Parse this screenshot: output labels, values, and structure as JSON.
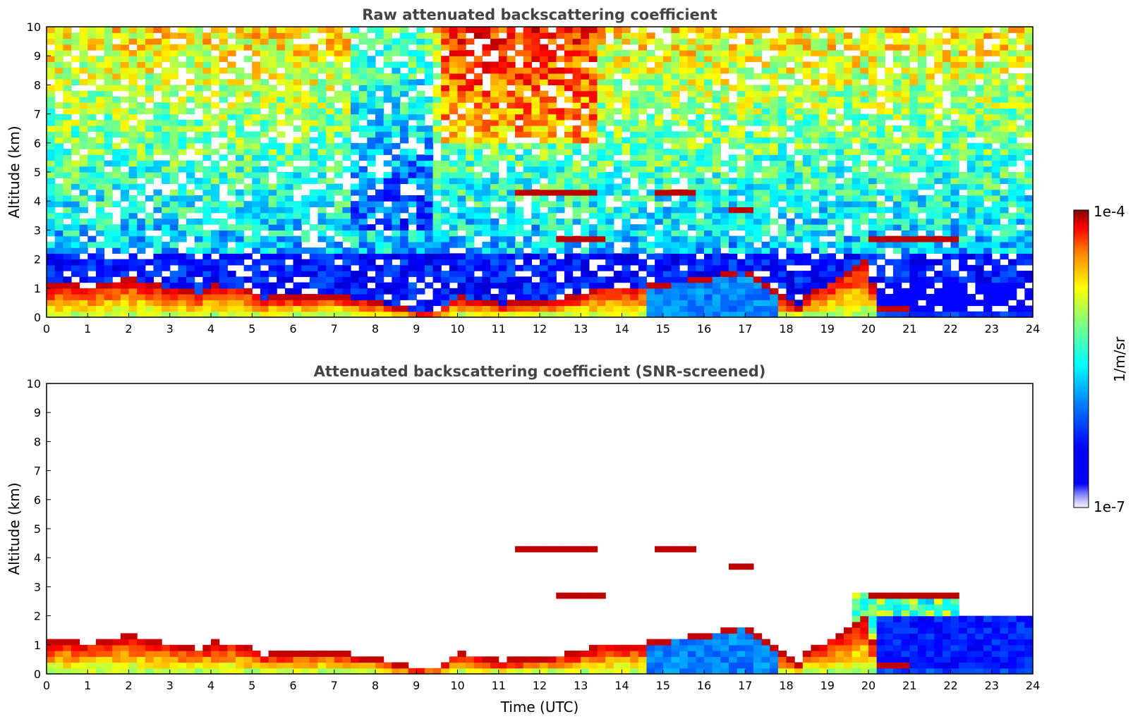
{
  "chart_data": [
    {
      "type": "heatmap",
      "title": "Raw attenuated backscattering coefficient",
      "xlabel": "",
      "ylabel": "Altitude (km)",
      "xlim": [
        0,
        24
      ],
      "ylim": [
        0,
        10
      ],
      "xticks": [
        "0",
        "1",
        "2",
        "3",
        "4",
        "5",
        "6",
        "7",
        "8",
        "9",
        "10",
        "11",
        "12",
        "13",
        "14",
        "15",
        "16",
        "17",
        "18",
        "19",
        "20",
        "21",
        "22",
        "23",
        "24"
      ],
      "yticks": [
        "0",
        "1",
        "2",
        "3",
        "4",
        "5",
        "6",
        "7",
        "8",
        "9",
        "10"
      ],
      "screened": false
    },
    {
      "type": "heatmap",
      "title": "Attenuated backscattering coefficient (SNR-screened)",
      "xlabel": "Time (UTC)",
      "ylabel": "Altitude (km)",
      "xlim": [
        0,
        24
      ],
      "ylim": [
        0,
        10
      ],
      "xticks": [
        "0",
        "1",
        "2",
        "3",
        "4",
        "5",
        "6",
        "7",
        "8",
        "9",
        "10",
        "11",
        "12",
        "13",
        "14",
        "15",
        "16",
        "17",
        "18",
        "19",
        "20",
        "21",
        "22",
        "23",
        "24"
      ],
      "yticks": [
        "0",
        "1",
        "2",
        "3",
        "4",
        "5",
        "6",
        "7",
        "8",
        "9",
        "10"
      ],
      "screened": true
    }
  ],
  "colorbar": {
    "label": "1/m/sr",
    "max_label": "1e-4",
    "min_label": "1e-7",
    "colormap": "jet",
    "scale": "log"
  },
  "features": {
    "boundary_layer_top_km": [
      [
        0,
        1.0
      ],
      [
        0.5,
        1.05
      ],
      [
        1,
        0.95
      ],
      [
        1.5,
        1.1
      ],
      [
        2,
        1.25
      ],
      [
        2.5,
        1.1
      ],
      [
        3,
        0.95
      ],
      [
        3.5,
        0.8
      ],
      [
        3.8,
        0.75
      ],
      [
        4,
        1.0
      ],
      [
        4.5,
        0.95
      ],
      [
        5,
        0.85
      ],
      [
        5.2,
        0.55
      ],
      [
        6,
        0.65
      ],
      [
        7,
        0.7
      ],
      [
        7.5,
        0.55
      ],
      [
        8,
        0.45
      ],
      [
        8.5,
        0.25
      ],
      [
        9,
        0.1
      ],
      [
        9.5,
        0.15
      ],
      [
        10,
        0.6
      ],
      [
        10.5,
        0.55
      ],
      [
        11,
        0.35
      ],
      [
        12,
        0.45
      ],
      [
        13,
        0.7
      ],
      [
        13.5,
        0.95
      ],
      [
        14,
        0.9
      ],
      [
        14.5,
        0.95
      ],
      [
        15,
        1.05
      ],
      [
        16,
        1.25
      ],
      [
        16.5,
        1.4
      ],
      [
        16.9,
        1.55
      ],
      [
        17.2,
        1.3
      ],
      [
        17.6,
        0.9
      ],
      [
        18,
        0.5
      ],
      [
        18.3,
        0.3
      ],
      [
        18.6,
        0.8
      ],
      [
        19,
        1.0
      ],
      [
        19.5,
        1.5
      ],
      [
        20,
        1.9
      ],
      [
        20.2,
        0.2
      ],
      [
        24,
        0.1
      ]
    ],
    "elevated_layers_km": [
      {
        "t0": 11.4,
        "t1": 13.3,
        "alt": 4.2
      },
      {
        "t0": 14.8,
        "t1": 15.8,
        "alt": 4.25
      },
      {
        "t0": 16.7,
        "t1": 17.1,
        "alt": 3.7
      },
      {
        "t0": 12.5,
        "t1": 13.6,
        "alt": 2.7
      },
      {
        "t0": 20.1,
        "t1": 22.2,
        "alt": 2.8
      }
    ]
  },
  "colors": {
    "dark_red": "#800000",
    "red": "#ff0000",
    "orange": "#ff8000",
    "yellow": "#ffff00",
    "cyan": "#00ffff",
    "blue": "#0000ff",
    "dark_blue": "#000080"
  }
}
